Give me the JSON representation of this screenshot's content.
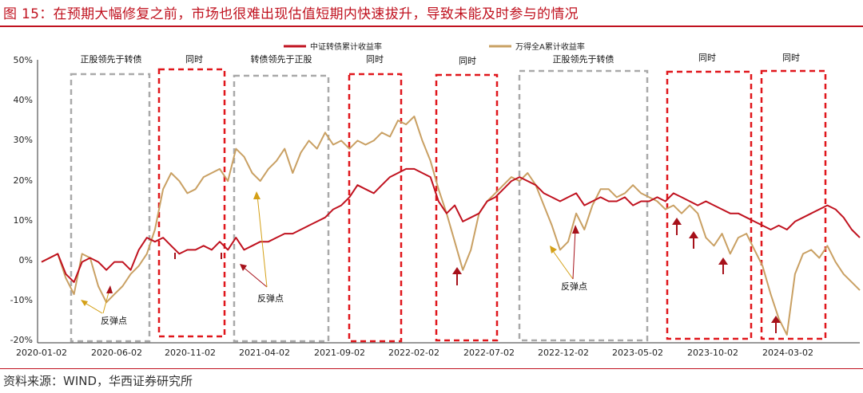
{
  "title": "图 15：在预期大幅修复之前，市场也很难出现估值短期内快速拔升，导致未能及时参与的情况",
  "source": "资料来源：WIND，华西证券研究所",
  "chart_data": {
    "type": "line",
    "ylim": [
      -20,
      50
    ],
    "yticks": [
      "50%",
      "40%",
      "30%",
      "20%",
      "10%",
      "0%",
      "-10%",
      "-20%"
    ],
    "ytick_values": [
      50,
      40,
      30,
      20,
      10,
      0,
      -10,
      -20
    ],
    "xticks": [
      "2020-01-02",
      "2020-06-02",
      "2020-11-02",
      "2021-04-02",
      "2021-09-02",
      "2022-02-02",
      "2022-07-02",
      "2022-12-02",
      "2023-05-02",
      "2023-10-02",
      "2024-03-02"
    ],
    "legend_position": "top",
    "series": [
      {
        "name": "中证转债累计收益率",
        "color": "#c0121f",
        "values": [
          [
            0,
            0
          ],
          [
            2,
            2
          ],
          [
            3,
            -3
          ],
          [
            4,
            -5
          ],
          [
            5,
            0
          ],
          [
            6,
            1
          ],
          [
            7,
            0
          ],
          [
            8,
            -2
          ],
          [
            9,
            0
          ],
          [
            10,
            0
          ],
          [
            11,
            -2
          ],
          [
            12,
            3
          ],
          [
            13,
            6
          ],
          [
            14,
            5
          ],
          [
            15,
            6
          ],
          [
            16,
            4
          ],
          [
            17,
            2
          ],
          [
            18,
            3
          ],
          [
            19,
            3
          ],
          [
            20,
            4
          ],
          [
            21,
            3
          ],
          [
            22,
            5
          ],
          [
            23,
            3
          ],
          [
            24,
            6
          ],
          [
            25,
            3
          ],
          [
            26,
            4
          ],
          [
            27,
            5
          ],
          [
            28,
            5
          ],
          [
            29,
            6
          ],
          [
            30,
            7
          ],
          [
            31,
            7
          ],
          [
            32,
            8
          ],
          [
            33,
            9
          ],
          [
            34,
            10
          ],
          [
            35,
            11
          ],
          [
            36,
            13
          ],
          [
            37,
            14
          ],
          [
            38,
            16
          ],
          [
            39,
            19
          ],
          [
            40,
            18
          ],
          [
            41,
            17
          ],
          [
            42,
            19
          ],
          [
            43,
            21
          ],
          [
            44,
            22
          ],
          [
            45,
            23
          ],
          [
            46,
            23
          ],
          [
            47,
            22
          ],
          [
            48,
            21
          ],
          [
            49,
            15
          ],
          [
            50,
            12
          ],
          [
            51,
            14
          ],
          [
            52,
            10
          ],
          [
            53,
            11
          ],
          [
            54,
            12
          ],
          [
            55,
            15
          ],
          [
            56,
            16
          ],
          [
            57,
            18
          ],
          [
            58,
            20
          ],
          [
            59,
            21
          ],
          [
            60,
            20
          ],
          [
            61,
            19
          ],
          [
            62,
            17
          ],
          [
            63,
            16
          ],
          [
            64,
            15
          ],
          [
            65,
            16
          ],
          [
            66,
            17
          ],
          [
            67,
            14
          ],
          [
            68,
            15
          ],
          [
            69,
            16
          ],
          [
            70,
            15
          ],
          [
            71,
            15
          ],
          [
            72,
            16
          ],
          [
            73,
            14
          ],
          [
            74,
            15
          ],
          [
            75,
            15
          ],
          [
            76,
            16
          ],
          [
            77,
            15
          ],
          [
            78,
            17
          ],
          [
            79,
            16
          ],
          [
            80,
            15
          ],
          [
            81,
            14
          ],
          [
            82,
            15
          ],
          [
            83,
            14
          ],
          [
            84,
            13
          ],
          [
            85,
            12
          ],
          [
            86,
            12
          ],
          [
            87,
            11
          ],
          [
            88,
            10
          ],
          [
            89,
            9
          ],
          [
            90,
            8
          ],
          [
            91,
            9
          ],
          [
            92,
            8
          ],
          [
            93,
            10
          ],
          [
            94,
            11
          ],
          [
            95,
            12
          ],
          [
            96,
            13
          ],
          [
            97,
            14
          ],
          [
            98,
            13
          ],
          [
            99,
            11
          ],
          [
            100,
            8
          ],
          [
            101,
            6
          ]
        ]
      },
      {
        "name": "万得全A累计收益率",
        "color": "#c9a063",
        "values": [
          [
            0,
            0
          ],
          [
            2,
            2
          ],
          [
            3,
            -4
          ],
          [
            4,
            -8
          ],
          [
            5,
            2
          ],
          [
            6,
            1
          ],
          [
            7,
            -6
          ],
          [
            8,
            -10
          ],
          [
            9,
            -8
          ],
          [
            10,
            -6
          ],
          [
            11,
            -3
          ],
          [
            12,
            -1
          ],
          [
            13,
            2
          ],
          [
            14,
            8
          ],
          [
            15,
            18
          ],
          [
            16,
            22
          ],
          [
            17,
            20
          ],
          [
            18,
            17
          ],
          [
            19,
            18
          ],
          [
            20,
            21
          ],
          [
            21,
            22
          ],
          [
            22,
            23
          ],
          [
            23,
            20
          ],
          [
            24,
            28
          ],
          [
            25,
            26
          ],
          [
            26,
            22
          ],
          [
            27,
            20
          ],
          [
            28,
            23
          ],
          [
            29,
            25
          ],
          [
            30,
            28
          ],
          [
            31,
            22
          ],
          [
            32,
            27
          ],
          [
            33,
            30
          ],
          [
            34,
            28
          ],
          [
            35,
            32
          ],
          [
            36,
            29
          ],
          [
            37,
            30
          ],
          [
            38,
            28
          ],
          [
            39,
            30
          ],
          [
            40,
            29
          ],
          [
            41,
            30
          ],
          [
            42,
            32
          ],
          [
            43,
            31
          ],
          [
            44,
            35
          ],
          [
            45,
            34
          ],
          [
            46,
            36
          ],
          [
            47,
            30
          ],
          [
            48,
            25
          ],
          [
            49,
            18
          ],
          [
            50,
            12
          ],
          [
            51,
            5
          ],
          [
            52,
            -2
          ],
          [
            53,
            3
          ],
          [
            54,
            12
          ],
          [
            55,
            15
          ],
          [
            56,
            17
          ],
          [
            57,
            19
          ],
          [
            58,
            21
          ],
          [
            59,
            20
          ],
          [
            60,
            22
          ],
          [
            61,
            19
          ],
          [
            62,
            14
          ],
          [
            63,
            9
          ],
          [
            64,
            3
          ],
          [
            65,
            5
          ],
          [
            66,
            12
          ],
          [
            67,
            8
          ],
          [
            68,
            14
          ],
          [
            69,
            18
          ],
          [
            70,
            18
          ],
          [
            71,
            16
          ],
          [
            72,
            17
          ],
          [
            73,
            19
          ],
          [
            74,
            17
          ],
          [
            75,
            16
          ],
          [
            76,
            15
          ],
          [
            77,
            13
          ],
          [
            78,
            14
          ],
          [
            79,
            12
          ],
          [
            80,
            14
          ],
          [
            81,
            12
          ],
          [
            82,
            6
          ],
          [
            83,
            4
          ],
          [
            84,
            7
          ],
          [
            85,
            2
          ],
          [
            86,
            6
          ],
          [
            87,
            7
          ],
          [
            88,
            3
          ],
          [
            89,
            -1
          ],
          [
            90,
            -8
          ],
          [
            91,
            -14
          ],
          [
            92,
            -18
          ],
          [
            93,
            -3
          ],
          [
            94,
            2
          ],
          [
            95,
            3
          ],
          [
            96,
            1
          ],
          [
            97,
            4
          ],
          [
            98,
            0
          ],
          [
            99,
            -3
          ],
          [
            100,
            -5
          ],
          [
            101,
            -7
          ]
        ]
      }
    ],
    "box_labels": [
      "正股领先于转债",
      "同时",
      "转债领先于正股",
      "同时",
      "同时",
      "正股领先于转债",
      "同时",
      "同时"
    ],
    "annotations": [
      "反弹点",
      "反弹点",
      "反弹点"
    ]
  }
}
